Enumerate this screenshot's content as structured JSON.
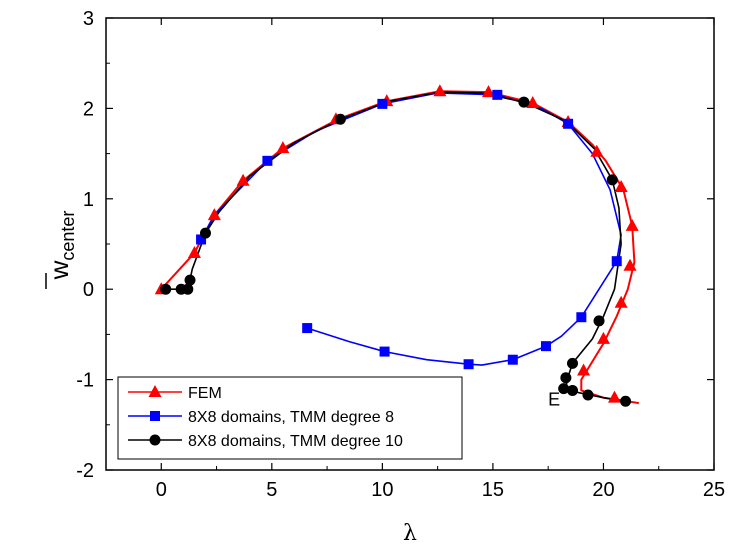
{
  "chart_data": {
    "type": "line",
    "xlabel": "λ",
    "ylabel_main": "w",
    "ylabel_sub": "center",
    "xlim": [
      -2.5,
      25
    ],
    "ylim": [
      -2,
      3
    ],
    "x_ticks": [
      0,
      5,
      10,
      15,
      20,
      25
    ],
    "y_ticks": [
      -2,
      -1,
      0,
      1,
      2,
      3
    ],
    "x_tick_labels": [
      "0",
      "5",
      "10",
      "15",
      "20",
      "25"
    ],
    "y_tick_labels": [
      "-2",
      "-1",
      "0",
      "1",
      "2",
      "3"
    ],
    "legend_position": "bottom-left",
    "annotation": {
      "text": "E",
      "x": 17.5,
      "y": -1.22
    },
    "series": [
      {
        "name": "FEM",
        "color": "#ff0000",
        "marker": "triangle",
        "curve": [
          [
            0,
            0
          ],
          [
            1.5,
            0.4
          ],
          [
            2.4,
            0.82
          ],
          [
            3.7,
            1.2
          ],
          [
            5.5,
            1.56
          ],
          [
            8,
            1.88
          ],
          [
            10.2,
            2.08
          ],
          [
            12.6,
            2.19
          ],
          [
            14.8,
            2.18
          ],
          [
            16.8,
            2.06
          ],
          [
            18.4,
            1.85
          ],
          [
            19.5,
            1.6
          ],
          [
            20.1,
            1.42
          ],
          [
            20.9,
            1.1
          ],
          [
            21.3,
            0.7
          ],
          [
            21.4,
            0.3
          ],
          [
            21.1,
            0.0
          ],
          [
            20.6,
            -0.3
          ],
          [
            20.0,
            -0.6
          ],
          [
            19.5,
            -0.8
          ],
          [
            19.0,
            -1.0
          ],
          [
            19.0,
            -1.12
          ],
          [
            20.0,
            -1.2
          ],
          [
            21.6,
            -1.26
          ]
        ],
        "markers": [
          [
            0,
            0
          ],
          [
            1.5,
            0.4
          ],
          [
            2.4,
            0.82
          ],
          [
            3.7,
            1.2
          ],
          [
            5.5,
            1.56
          ],
          [
            7.9,
            1.88
          ],
          [
            10.2,
            2.08
          ],
          [
            12.6,
            2.19
          ],
          [
            14.8,
            2.18
          ],
          [
            16.8,
            2.06
          ],
          [
            18.4,
            1.85
          ],
          [
            19.7,
            1.52
          ],
          [
            20.8,
            1.13
          ],
          [
            21.3,
            0.7
          ],
          [
            21.2,
            0.26
          ],
          [
            20.8,
            -0.15
          ],
          [
            20.0,
            -0.55
          ],
          [
            19.1,
            -0.9
          ],
          [
            20.5,
            -1.2
          ]
        ]
      },
      {
        "name": "8X8 domains, TMM degree 8",
        "color": "#0000ff",
        "marker": "square",
        "curve": [
          [
            1.8,
            0.55
          ],
          [
            2.4,
            0.82
          ],
          [
            4.8,
            1.42
          ],
          [
            7.0,
            1.75
          ],
          [
            10.0,
            2.05
          ],
          [
            12.5,
            2.17
          ],
          [
            15.2,
            2.15
          ],
          [
            17.2,
            2.0
          ],
          [
            18.4,
            1.83
          ],
          [
            19.5,
            1.5
          ],
          [
            20.3,
            1.1
          ],
          [
            20.8,
            0.6
          ],
          [
            20.6,
            0.31
          ],
          [
            19.8,
            0.0
          ],
          [
            19.0,
            -0.31
          ],
          [
            18.1,
            -0.52
          ],
          [
            17.4,
            -0.63
          ],
          [
            15.9,
            -0.78
          ],
          [
            14.5,
            -0.84
          ],
          [
            13.9,
            -0.83
          ],
          [
            12.0,
            -0.78
          ],
          [
            10.1,
            -0.69
          ],
          [
            8.5,
            -0.58
          ],
          [
            6.6,
            -0.43
          ]
        ],
        "markers": [
          [
            1.8,
            0.55
          ],
          [
            4.8,
            1.42
          ],
          [
            10.0,
            2.05
          ],
          [
            15.2,
            2.15
          ],
          [
            18.4,
            1.83
          ],
          [
            20.6,
            0.31
          ],
          [
            19.0,
            -0.31
          ],
          [
            17.4,
            -0.63
          ],
          [
            15.9,
            -0.78
          ],
          [
            13.9,
            -0.83
          ],
          [
            10.1,
            -0.69
          ],
          [
            6.6,
            -0.43
          ]
        ]
      },
      {
        "name": "8X8 domains, TMM degree 10",
        "color": "#000000",
        "marker": "circle",
        "curve": [
          [
            0.2,
            0
          ],
          [
            0.9,
            0
          ],
          [
            1.2,
            0
          ],
          [
            1.3,
            0.05
          ],
          [
            1.3,
            0.1
          ],
          [
            1.4,
            0.22
          ],
          [
            2.0,
            0.62
          ],
          [
            2.6,
            0.85
          ],
          [
            4.0,
            1.25
          ],
          [
            6.0,
            1.62
          ],
          [
            8.1,
            1.88
          ],
          [
            10.3,
            2.08
          ],
          [
            12.6,
            2.18
          ],
          [
            14.5,
            2.17
          ],
          [
            16.4,
            2.07
          ],
          [
            18.3,
            1.86
          ],
          [
            19.6,
            1.55
          ],
          [
            20.4,
            1.21
          ],
          [
            20.7,
            0.9
          ],
          [
            20.8,
            0.5
          ],
          [
            20.5,
            0.0
          ],
          [
            20.0,
            -0.3
          ],
          [
            19.5,
            -0.55
          ],
          [
            18.6,
            -0.82
          ],
          [
            18.4,
            -0.97
          ],
          [
            18.3,
            -1.08
          ],
          [
            18.4,
            -1.12
          ],
          [
            19.0,
            -1.15
          ],
          [
            20.0,
            -1.2
          ],
          [
            21.0,
            -1.24
          ]
        ],
        "markers": [
          [
            0.2,
            0
          ],
          [
            0.9,
            0
          ],
          [
            1.2,
            0
          ],
          [
            1.3,
            0.1
          ],
          [
            2.0,
            0.62
          ],
          [
            8.1,
            1.88
          ],
          [
            16.4,
            2.07
          ],
          [
            20.4,
            1.21
          ],
          [
            19.8,
            -0.35
          ],
          [
            18.6,
            -0.82
          ],
          [
            18.3,
            -0.98
          ],
          [
            18.2,
            -1.1
          ],
          [
            18.6,
            -1.12
          ],
          [
            19.3,
            -1.17
          ],
          [
            21.0,
            -1.24
          ]
        ]
      }
    ]
  }
}
